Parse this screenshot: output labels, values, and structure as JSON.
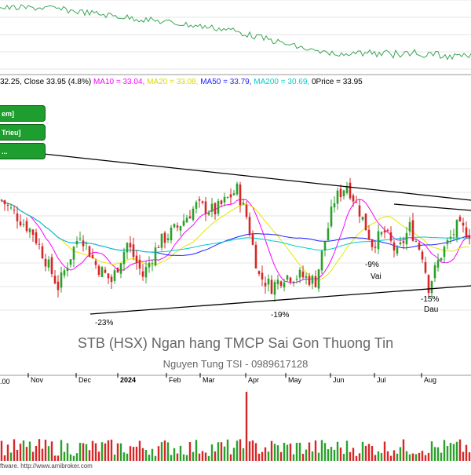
{
  "ohlc_line": {
    "text": "32.25, Close 33.95 (4.8%)",
    "ma10": "MA10 = 33.04,",
    "ma20": "MA20 = 33.08,",
    "ma50": "MA50 = 33.79,",
    "ma200": "MA200 = 30.69,",
    "oprice": "0Price = 33.95"
  },
  "buttons": [
    "em]",
    "Trieu]",
    "..."
  ],
  "title": "STB (HSX) Ngan hang TMCP Sai Gon Thuong Tin",
  "subtitle": "Nguyen Tung TSI - 0989617128",
  "volume_label": ".00",
  "footer": "ftware. http://www.amibroker.com",
  "annotations": [
    {
      "text": "-23%",
      "x": "Dec",
      "y": 23.3
    },
    {
      "text": "-19%",
      "x": "Apr",
      "y": 24.5
    },
    {
      "text": "-9%",
      "x": "Jul",
      "y": 28.0
    },
    {
      "text": "Vai",
      "x": "Jul",
      "y": 27.0
    },
    {
      "text": "-15%",
      "x": "Aug",
      "y": 25.6
    },
    {
      "text": "Dau",
      "x": "Aug",
      "y": 24.5
    }
  ],
  "colors": {
    "ma10": "#ff00ff",
    "ma20": "#e6e600",
    "ma50": "#2020ff",
    "ma200": "#00cccc",
    "up": "#2ca02c",
    "down": "#d62728",
    "indicator": "#3aa655",
    "button": "#1e9e2e"
  },
  "chart_data": {
    "type": "candlestick",
    "x_ticks": [
      "Nov",
      "Dec",
      "2024",
      "Feb",
      "Mar",
      "Apr",
      "May",
      "Jun",
      "Jul",
      "Aug"
    ],
    "grid": true,
    "series": [
      {
        "name": "MA10",
        "color": "#ff00ff"
      },
      {
        "name": "MA20",
        "color": "#e6e600"
      },
      {
        "name": "MA50",
        "color": "#2020ff"
      },
      {
        "name": "MA200",
        "color": "#00cccc"
      }
    ],
    "last_close": 33.95,
    "change_pct": 4.8
  }
}
